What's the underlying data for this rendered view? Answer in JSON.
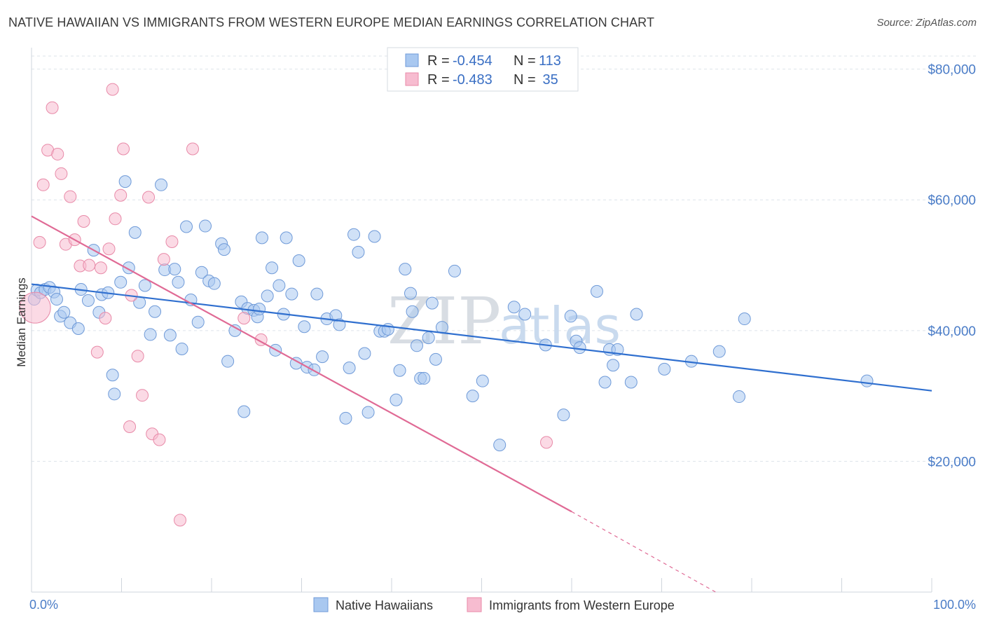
{
  "header": {
    "title": "NATIVE HAWAIIAN VS IMMIGRANTS FROM WESTERN EUROPE MEDIAN EARNINGS CORRELATION CHART",
    "source": "Source: ZipAtlas.com"
  },
  "watermark": {
    "zip": "ZIP",
    "atlas": "atlas"
  },
  "colors": {
    "blue_fill": "#a9c8f0",
    "blue_stroke": "#6f9ad8",
    "blue_line": "#2f6fcf",
    "pink_fill": "#f7bcd0",
    "pink_stroke": "#e88aa8",
    "pink_line": "#e06a95",
    "axis_text": "#4a7cc7",
    "grid": "#dde3ea"
  },
  "legend": {
    "rows": [
      {
        "r_label": "R = ",
        "r_value": "-0.454",
        "n_label": "N = ",
        "n_value": "113",
        "color": "blue"
      },
      {
        "r_label": "R = ",
        "r_value": "-0.483",
        "n_label": "N = ",
        "n_value": " 35",
        "color": "pink"
      }
    ]
  },
  "chart_data": {
    "type": "scatter",
    "title": "NATIVE HAWAIIAN VS IMMIGRANTS FROM WESTERN EUROPE MEDIAN EARNINGS CORRELATION CHART",
    "xlabel": "",
    "ylabel": "Median Earnings",
    "xlim": [
      0,
      100
    ],
    "ylim": [
      0,
      82000
    ],
    "x_tick_labels": [
      "0.0%",
      "100.0%"
    ],
    "y_ticks": [
      20000,
      40000,
      60000,
      80000
    ],
    "y_tick_labels": [
      "$20,000",
      "$40,000",
      "$60,000",
      "$80,000"
    ],
    "grid": "horizontal dashed",
    "legend_position": "top-center",
    "series": [
      {
        "name": "Native Hawaiians",
        "color": "#a9c8f0",
        "trend": {
          "x": [
            0,
            100
          ],
          "y": [
            47100,
            30800
          ]
        },
        "points": [
          [
            0.3,
            44800
          ],
          [
            0.6,
            46200
          ],
          [
            1.0,
            45800
          ],
          [
            1.5,
            46300
          ],
          [
            2.0,
            46600
          ],
          [
            2.5,
            45900
          ],
          [
            2.8,
            44800
          ],
          [
            3.2,
            42200
          ],
          [
            3.6,
            42800
          ],
          [
            4.3,
            41200
          ],
          [
            5.2,
            40300
          ],
          [
            5.5,
            46300
          ],
          [
            6.3,
            44600
          ],
          [
            6.9,
            52300
          ],
          [
            7.5,
            42800
          ],
          [
            7.8,
            45500
          ],
          [
            8.5,
            45800
          ],
          [
            9.0,
            33200
          ],
          [
            9.2,
            30300
          ],
          [
            9.9,
            47400
          ],
          [
            10.4,
            62800
          ],
          [
            10.8,
            49600
          ],
          [
            11.5,
            55000
          ],
          [
            12.0,
            44300
          ],
          [
            12.6,
            46900
          ],
          [
            13.2,
            39400
          ],
          [
            13.7,
            42900
          ],
          [
            14.4,
            62300
          ],
          [
            14.8,
            49300
          ],
          [
            15.4,
            39300
          ],
          [
            15.9,
            49400
          ],
          [
            16.3,
            47400
          ],
          [
            16.7,
            37200
          ],
          [
            17.2,
            55900
          ],
          [
            17.7,
            44700
          ],
          [
            18.5,
            41300
          ],
          [
            18.9,
            48900
          ],
          [
            19.3,
            56000
          ],
          [
            19.7,
            47600
          ],
          [
            20.3,
            47200
          ],
          [
            21.1,
            53300
          ],
          [
            21.4,
            52400
          ],
          [
            21.8,
            35300
          ],
          [
            22.6,
            40000
          ],
          [
            23.3,
            44400
          ],
          [
            23.6,
            27600
          ],
          [
            24.0,
            43400
          ],
          [
            24.7,
            43100
          ],
          [
            25.1,
            42100
          ],
          [
            25.3,
            43300
          ],
          [
            25.6,
            54200
          ],
          [
            26.2,
            45300
          ],
          [
            26.7,
            49600
          ],
          [
            27.1,
            37000
          ],
          [
            27.5,
            46900
          ],
          [
            28.0,
            42500
          ],
          [
            28.3,
            54200
          ],
          [
            28.9,
            45600
          ],
          [
            29.4,
            35000
          ],
          [
            29.7,
            50700
          ],
          [
            30.3,
            40600
          ],
          [
            30.6,
            34400
          ],
          [
            31.4,
            34000
          ],
          [
            31.7,
            45600
          ],
          [
            32.3,
            36000
          ],
          [
            32.8,
            41800
          ],
          [
            33.8,
            42300
          ],
          [
            34.2,
            40900
          ],
          [
            34.9,
            26600
          ],
          [
            35.3,
            34300
          ],
          [
            35.8,
            54700
          ],
          [
            36.3,
            52000
          ],
          [
            37.0,
            36500
          ],
          [
            37.4,
            27500
          ],
          [
            38.1,
            54400
          ],
          [
            38.7,
            39900
          ],
          [
            39.2,
            39900
          ],
          [
            39.6,
            40200
          ],
          [
            40.5,
            29400
          ],
          [
            40.9,
            33900
          ],
          [
            41.5,
            49400
          ],
          [
            42.1,
            45700
          ],
          [
            42.3,
            42900
          ],
          [
            42.8,
            37700
          ],
          [
            43.2,
            32700
          ],
          [
            43.6,
            32700
          ],
          [
            44.1,
            38900
          ],
          [
            44.5,
            44200
          ],
          [
            44.9,
            35600
          ],
          [
            45.6,
            40500
          ],
          [
            47.0,
            49100
          ],
          [
            49.0,
            30000
          ],
          [
            50.1,
            32300
          ],
          [
            52.0,
            22500
          ],
          [
            53.6,
            43600
          ],
          [
            54.8,
            42500
          ],
          [
            57.1,
            37800
          ],
          [
            59.1,
            27100
          ],
          [
            59.9,
            42200
          ],
          [
            60.5,
            38400
          ],
          [
            60.9,
            37400
          ],
          [
            62.8,
            46000
          ],
          [
            63.7,
            32100
          ],
          [
            64.2,
            37100
          ],
          [
            64.6,
            34700
          ],
          [
            65.1,
            37100
          ],
          [
            66.6,
            32100
          ],
          [
            67.2,
            42500
          ],
          [
            70.3,
            34100
          ],
          [
            73.3,
            35300
          ],
          [
            76.4,
            36800
          ],
          [
            78.6,
            29900
          ],
          [
            79.2,
            41800
          ],
          [
            92.8,
            32300
          ]
        ]
      },
      {
        "name": "Immigrants from Western Europe",
        "color": "#f7bcd0",
        "trend": {
          "x": [
            0,
            60
          ],
          "y": [
            57500,
            12300
          ],
          "dashed_to": {
            "x": 76,
            "y": 0
          }
        },
        "points": [
          [
            0.4,
            43500
          ],
          [
            0.9,
            53500
          ],
          [
            1.3,
            62300
          ],
          [
            1.8,
            67600
          ],
          [
            2.3,
            74100
          ],
          [
            2.9,
            67000
          ],
          [
            3.3,
            64000
          ],
          [
            3.8,
            53200
          ],
          [
            4.3,
            60500
          ],
          [
            4.8,
            53900
          ],
          [
            5.4,
            49900
          ],
          [
            5.8,
            56700
          ],
          [
            6.4,
            50000
          ],
          [
            7.3,
            36700
          ],
          [
            7.7,
            49600
          ],
          [
            8.2,
            41900
          ],
          [
            8.6,
            52500
          ],
          [
            9.0,
            76900
          ],
          [
            9.3,
            57100
          ],
          [
            9.9,
            60700
          ],
          [
            10.2,
            67800
          ],
          [
            10.9,
            25300
          ],
          [
            11.1,
            45400
          ],
          [
            11.8,
            36100
          ],
          [
            12.3,
            30100
          ],
          [
            13.0,
            60400
          ],
          [
            13.4,
            24200
          ],
          [
            14.2,
            23300
          ],
          [
            14.7,
            50900
          ],
          [
            15.6,
            53600
          ],
          [
            16.5,
            11000
          ],
          [
            17.9,
            67800
          ],
          [
            23.6,
            41900
          ],
          [
            25.5,
            38600
          ],
          [
            57.2,
            22900
          ]
        ]
      }
    ]
  },
  "bottom_legend": [
    {
      "label": "Native Hawaiians",
      "color": "blue"
    },
    {
      "label": "Immigrants from Western Europe",
      "color": "pink"
    }
  ]
}
